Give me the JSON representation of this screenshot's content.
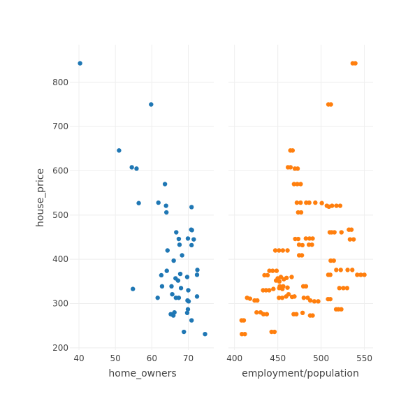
{
  "chart_data": [
    {
      "type": "scatter",
      "xlabel": "home_owners",
      "ylabel": "house_price",
      "xlim": [
        37.5,
        77
      ],
      "ylim": [
        195,
        885
      ],
      "xticks": [
        40,
        50,
        60,
        70
      ],
      "yticks": [
        200,
        300,
        400,
        500,
        600,
        700,
        800
      ],
      "grid": true,
      "color": "#1f77b4",
      "points": [
        [
          40.3,
          843
        ],
        [
          59.8,
          750
        ],
        [
          51.0,
          646
        ],
        [
          54.5,
          608
        ],
        [
          55.8,
          605
        ],
        [
          63.6,
          570
        ],
        [
          56.4,
          527
        ],
        [
          61.8,
          528
        ],
        [
          63.9,
          521
        ],
        [
          64.0,
          506
        ],
        [
          70.9,
          518
        ],
        [
          66.7,
          461
        ],
        [
          70.8,
          467
        ],
        [
          71.0,
          466
        ],
        [
          67.4,
          446
        ],
        [
          69.9,
          447
        ],
        [
          71.5,
          445
        ],
        [
          67.6,
          433
        ],
        [
          70.9,
          432
        ],
        [
          64.3,
          420
        ],
        [
          68.3,
          409
        ],
        [
          66.0,
          397
        ],
        [
          64.1,
          374
        ],
        [
          72.5,
          376
        ],
        [
          62.6,
          364
        ],
        [
          67.8,
          367
        ],
        [
          72.4,
          365
        ],
        [
          66.5,
          357
        ],
        [
          67.2,
          352
        ],
        [
          69.7,
          360
        ],
        [
          62.8,
          339
        ],
        [
          65.4,
          339
        ],
        [
          68.0,
          335
        ],
        [
          54.8,
          333
        ],
        [
          70.0,
          330
        ],
        [
          61.6,
          313
        ],
        [
          65.6,
          321
        ],
        [
          66.6,
          313
        ],
        [
          67.4,
          313
        ],
        [
          69.8,
          307
        ],
        [
          72.4,
          316
        ],
        [
          70.1,
          305
        ],
        [
          69.9,
          287
        ],
        [
          69.7,
          279
        ],
        [
          65.2,
          276
        ],
        [
          65.9,
          273
        ],
        [
          66.2,
          280
        ],
        [
          70.9,
          262
        ],
        [
          68.8,
          236
        ],
        [
          74.6,
          231
        ]
      ]
    },
    {
      "type": "scatter",
      "xlabel": "employment/population",
      "ylabel": "",
      "xlim": [
        393,
        560
      ],
      "ylim": [
        195,
        885
      ],
      "xticks": [
        400,
        450,
        500,
        550
      ],
      "grid": true,
      "color": "#ff7f0e",
      "points": [
        [
          536.5,
          843
        ],
        [
          539.5,
          843
        ],
        [
          508.4,
          750
        ],
        [
          511.3,
          750
        ],
        [
          464.5,
          646
        ],
        [
          467.1,
          646
        ],
        [
          461.7,
          608
        ],
        [
          464.7,
          608
        ],
        [
          469.7,
          605
        ],
        [
          472.9,
          605
        ],
        [
          468.7,
          570
        ],
        [
          472.5,
          570
        ],
        [
          476.4,
          570
        ],
        [
          472.0,
          528
        ],
        [
          476.3,
          528
        ],
        [
          482.8,
          528
        ],
        [
          486.3,
          528
        ],
        [
          493.3,
          528
        ],
        [
          500.8,
          527
        ],
        [
          506.6,
          521
        ],
        [
          509.0,
          519
        ],
        [
          512.6,
          521
        ],
        [
          517.7,
          521
        ],
        [
          522.0,
          521
        ],
        [
          473.5,
          506
        ],
        [
          476.9,
          506
        ],
        [
          510.0,
          461
        ],
        [
          512.2,
          461
        ],
        [
          515.4,
          461
        ],
        [
          523.5,
          461
        ],
        [
          532.1,
          467
        ],
        [
          535.0,
          467
        ],
        [
          470.1,
          446
        ],
        [
          473.6,
          446
        ],
        [
          482.4,
          447
        ],
        [
          486.6,
          447
        ],
        [
          490.2,
          447
        ],
        [
          533.3,
          445
        ],
        [
          537.5,
          445
        ],
        [
          474.5,
          433
        ],
        [
          478.4,
          432
        ],
        [
          485.9,
          433
        ],
        [
          489.4,
          433
        ],
        [
          447.1,
          420
        ],
        [
          451.4,
          420
        ],
        [
          455.8,
          420
        ],
        [
          461.2,
          420
        ],
        [
          474.6,
          409
        ],
        [
          477.8,
          409
        ],
        [
          511.1,
          397
        ],
        [
          514.6,
          397
        ],
        [
          440.3,
          374
        ],
        [
          444.0,
          374
        ],
        [
          448.6,
          374
        ],
        [
          508.3,
          365
        ],
        [
          510.6,
          365
        ],
        [
          517.5,
          376
        ],
        [
          522.7,
          376
        ],
        [
          530.6,
          376
        ],
        [
          536.0,
          376
        ],
        [
          541.7,
          365
        ],
        [
          545.8,
          365
        ],
        [
          550.0,
          365
        ],
        [
          434.6,
          364
        ],
        [
          438.2,
          364
        ],
        [
          449.9,
          357
        ],
        [
          453.5,
          360
        ],
        [
          457.0,
          355
        ],
        [
          460.1,
          358
        ],
        [
          466.0,
          360
        ],
        [
          448.0,
          352
        ],
        [
          451.8,
          350
        ],
        [
          452.3,
          339
        ],
        [
          456.2,
          339
        ],
        [
          461.2,
          336
        ],
        [
          451.6,
          335
        ],
        [
          455.3,
          333
        ],
        [
          479.4,
          339
        ],
        [
          482.5,
          339
        ],
        [
          433.0,
          330
        ],
        [
          436.4,
          330
        ],
        [
          440.1,
          330
        ],
        [
          444.9,
          333
        ],
        [
          521.1,
          335
        ],
        [
          525.7,
          335
        ],
        [
          530.0,
          335
        ],
        [
          414.5,
          313
        ],
        [
          417.9,
          311
        ],
        [
          423.2,
          307
        ],
        [
          426.3,
          307
        ],
        [
          451.3,
          313
        ],
        [
          455.1,
          313
        ],
        [
          459.6,
          316
        ],
        [
          462.4,
          321
        ],
        [
          466.5,
          315
        ],
        [
          469.2,
          316
        ],
        [
          480.0,
          313
        ],
        [
          484.5,
          313
        ],
        [
          487.5,
          307
        ],
        [
          492.2,
          305
        ],
        [
          496.7,
          305
        ],
        [
          508.0,
          310
        ],
        [
          510.6,
          310
        ],
        [
          425.5,
          280
        ],
        [
          430.1,
          280
        ],
        [
          433.4,
          276
        ],
        [
          437.3,
          276
        ],
        [
          468.3,
          276
        ],
        [
          471.4,
          276
        ],
        [
          478.6,
          279
        ],
        [
          487.3,
          273
        ],
        [
          490.2,
          273
        ],
        [
          517.3,
          287
        ],
        [
          520.0,
          287
        ],
        [
          523.3,
          287
        ],
        [
          408.2,
          262
        ],
        [
          410.7,
          262
        ],
        [
          442.8,
          236
        ],
        [
          446.2,
          236
        ],
        [
          408.5,
          231
        ],
        [
          411.9,
          231
        ]
      ]
    }
  ]
}
